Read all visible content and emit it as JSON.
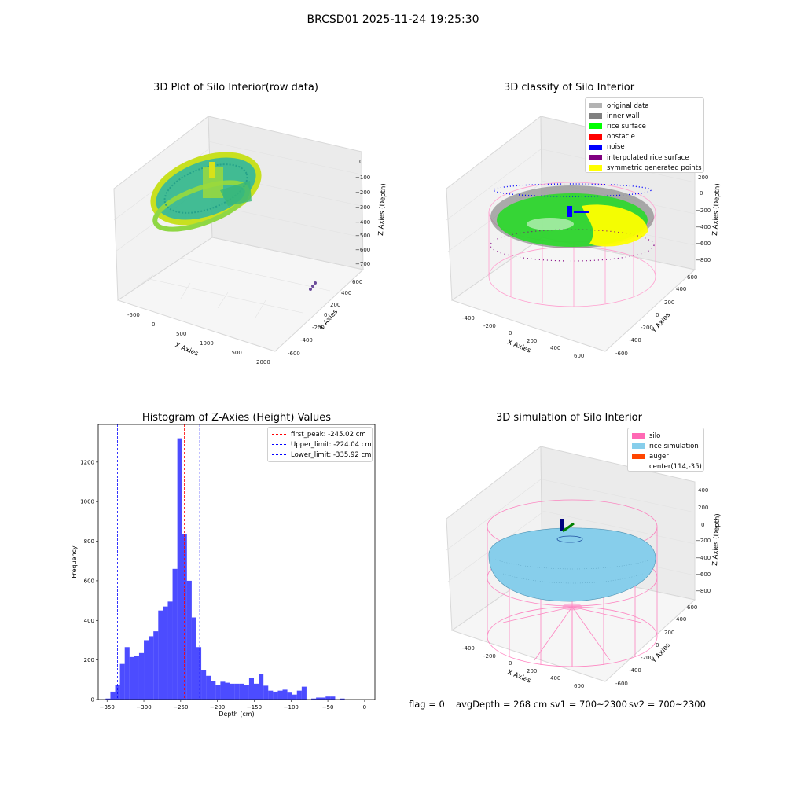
{
  "suptitle": "BRCSD01 2025-11-24 19:25:30",
  "panels": {
    "raw": {
      "title": "3D Plot of Silo Interior(row data)",
      "xlabel": "X Axies",
      "ylabel": "Y Axies",
      "zlabel": "Z Axies (Depth)",
      "xticks": [
        "-500",
        "0",
        "500",
        "1000",
        "1500",
        "2000"
      ],
      "yticks": [
        "-600",
        "-400",
        "-200",
        "0",
        "200",
        "400",
        "600"
      ],
      "zticks": [
        "0",
        "−100",
        "−200",
        "−300",
        "−400",
        "−500",
        "−600",
        "−700"
      ]
    },
    "classify": {
      "title": "3D classify of Silo Interior",
      "xlabel": "X Axies",
      "ylabel": "Y Axies",
      "zlabel": "Z Axies (Depth)",
      "xticks": [
        "-400",
        "-200",
        "0",
        "200",
        "400",
        "600"
      ],
      "yticks": [
        "-600",
        "-400",
        "-200",
        "0",
        "200",
        "400",
        "600"
      ],
      "zticks": [
        "200",
        "0",
        "−200",
        "−400",
        "−600",
        "−800"
      ],
      "legend": [
        {
          "label": "original data",
          "color": "#b3b3b3"
        },
        {
          "label": "inner wall",
          "color": "#808080"
        },
        {
          "label": "rice surface",
          "color": "#00ff00"
        },
        {
          "label": "obstacle",
          "color": "#ff0000"
        },
        {
          "label": "noise",
          "color": "#0000ff"
        },
        {
          "label": "interpolated rice surface",
          "color": "#800080"
        },
        {
          "label": "symmetric generated points",
          "color": "#ffff00"
        }
      ]
    },
    "simulation": {
      "title": "3D simulation of Silo Interior",
      "xlabel": "X Axies",
      "ylabel": "Y Axies",
      "zlabel": "Z Axies (Depth)",
      "xticks": [
        "-400",
        "-200",
        "0",
        "200",
        "400",
        "600"
      ],
      "yticks": [
        "-600",
        "-400",
        "-200",
        "0",
        "200",
        "400",
        "600"
      ],
      "zticks": [
        "400",
        "200",
        "0",
        "−200",
        "−400",
        "−600",
        "−800"
      ],
      "legend": [
        {
          "label": "silo",
          "color": "#ff69b4"
        },
        {
          "label": "rice simulation",
          "color": "#87ceeb"
        },
        {
          "label": "auger",
          "color": "#ff4500"
        },
        {
          "label": "center(114,-35)",
          "color": ""
        }
      ]
    }
  },
  "footer": {
    "flag": "flag = 0",
    "avg": "avgDepth = 268 cm",
    "sv1": "sv1 = 700~2300",
    "sv2": "sv2 = 700~2300"
  },
  "chart_data": [
    {
      "type": "bar",
      "title": "Histogram of Z-Axies (Height) Values",
      "xlabel": "Depth (cm)",
      "ylabel": "Frequency",
      "color": "#0000ff",
      "bin_start": -352,
      "bin_width": 6.5,
      "values": [
        5,
        40,
        75,
        180,
        265,
        215,
        220,
        235,
        300,
        320,
        345,
        450,
        470,
        495,
        660,
        1320,
        835,
        600,
        415,
        265,
        150,
        120,
        95,
        75,
        90,
        85,
        80,
        80,
        80,
        75,
        110,
        80,
        130,
        70,
        45,
        40,
        45,
        50,
        35,
        25,
        45,
        65,
        0,
        5,
        10,
        10,
        15,
        15,
        0,
        5
      ],
      "xlim": [
        -362,
        14
      ],
      "ylim": [
        0,
        1390
      ],
      "xticks": [
        -350,
        -300,
        -250,
        -200,
        -150,
        -100,
        -50,
        0
      ],
      "yticks": [
        0,
        200,
        400,
        600,
        800,
        1000,
        1200
      ],
      "lines": [
        {
          "label": "first_peak: -245.02 cm",
          "value": -245.02,
          "color": "#ff0000"
        },
        {
          "label": "Upper_limit: -224.04 cm",
          "value": -224.04,
          "color": "#0000ff"
        },
        {
          "label": "Lower_limit: -335.92 cm",
          "value": -335.92,
          "color": "#0000ff"
        }
      ],
      "legend_position": "upper right"
    }
  ]
}
